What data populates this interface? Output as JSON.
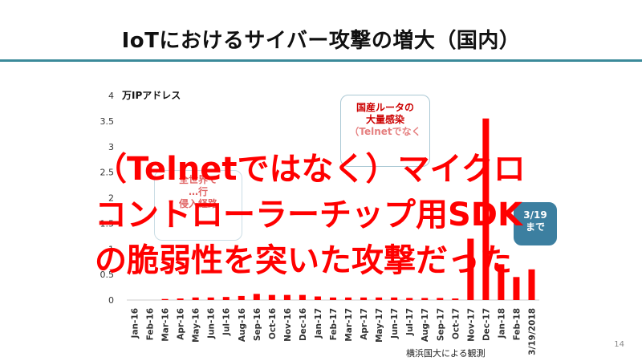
{
  "slide": {
    "title": "IoTにおけるサイバー攻撃の増大（国内）",
    "page_number": "14",
    "source": "横浜国大による観測"
  },
  "overlay": {
    "line1": "（Telnetではなく）マイクロ",
    "line2": "コントローラーチップ用SDK",
    "line3": "の脆弱性を突いた攻撃だった",
    "color": "#ff0000"
  },
  "callouts": {
    "domestic_router": {
      "line1": "国産ルータの",
      "line2": "大量感染",
      "line3": "（Telnetでなく"
    },
    "worldwide": {
      "line1": "全世界で",
      "line2": "…行",
      "line3": "侵入経路"
    },
    "period": {
      "line1": "3/19",
      "line2": "まで"
    }
  },
  "chart_data": {
    "type": "bar",
    "ylabel": "万IPアドレス",
    "ylim": [
      0,
      4
    ],
    "yticks": [
      "0",
      "0.5",
      "1",
      "1.5",
      "2",
      "2.5",
      "3",
      "3.5",
      "4"
    ],
    "grid": false,
    "color": "#ff0000",
    "categories": [
      "Jan-16",
      "Feb-16",
      "Mar-16",
      "Apr-16",
      "May-16",
      "Jun-16",
      "Jul-16",
      "Aug-16",
      "Sep-16",
      "Oct-16",
      "Nov-16",
      "Dec-16",
      "Jan-17",
      "Feb-17",
      "Mar-17",
      "Apr-17",
      "May-17",
      "Jun-17",
      "Jul-17",
      "Aug-17",
      "Sep-17",
      "Oct-17",
      "Nov-17",
      "Dec-17",
      "Jan-18",
      "Feb-18",
      "3/19/2018"
    ],
    "values": [
      0.0,
      0.0,
      0.02,
      0.03,
      0.05,
      0.05,
      0.06,
      0.08,
      0.12,
      0.1,
      0.1,
      0.1,
      0.07,
      0.05,
      0.05,
      0.05,
      0.05,
      0.05,
      0.04,
      0.04,
      0.04,
      0.03,
      1.2,
      3.55,
      0.7,
      0.45,
      0.6
    ]
  }
}
